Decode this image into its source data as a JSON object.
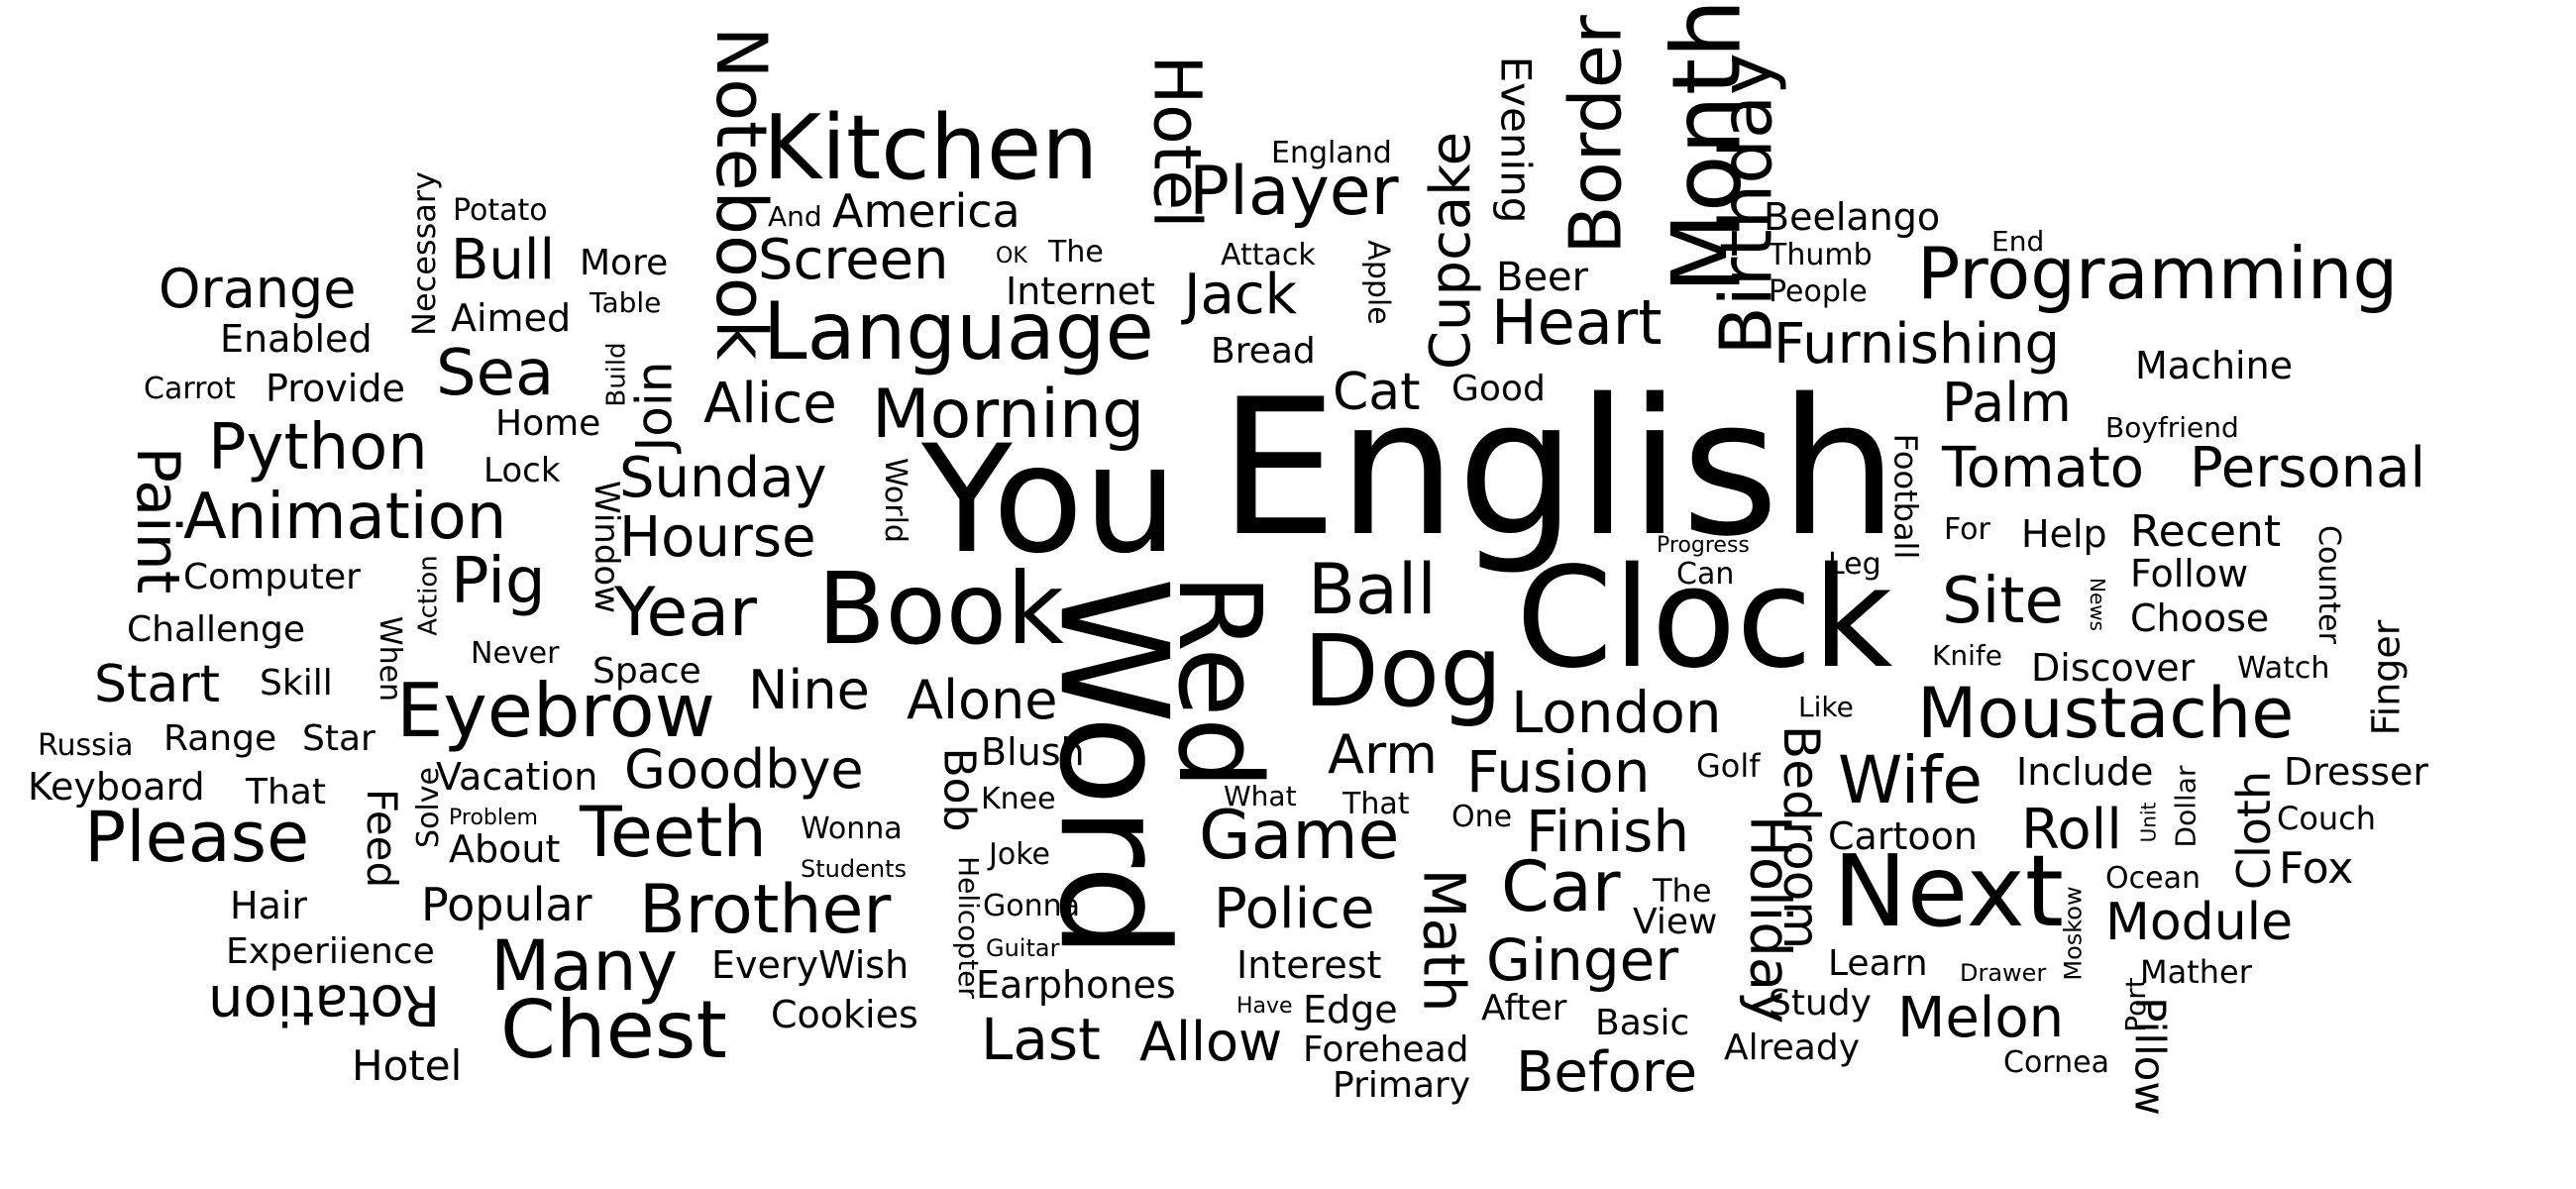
{
  "colors": {
    "background": "#ffffff",
    "text": "#000000"
  },
  "words": {
    "english": "English",
    "clock": "Clock",
    "you": "You",
    "word": "Word",
    "red": "Red",
    "book": "Book",
    "dog": "Dog",
    "next": "Next",
    "kitchen": "Kitchen",
    "language": "Language",
    "programming": "Programming",
    "chest": "Chest",
    "moustache": "Moustache",
    "eyebrow": "Eyebrow",
    "month": "Month",
    "birthday": "Birthday",
    "border": "Border",
    "notebook": "Notebook",
    "morning": "Morning",
    "player": "Player",
    "brother": "Brother",
    "please": "Please",
    "many": "Many",
    "ball": "Ball",
    "car": "Car",
    "game": "Game",
    "teeth": "Teeth",
    "year": "Year",
    "wife": "Wife",
    "site": "Site",
    "hotel_top": "Hotel",
    "animation": "Animation",
    "python": "Python",
    "sea": "Sea",
    "pig": "Pig",
    "hourse": "Hourse",
    "sunday": "Sunday",
    "furnishing": "Furnishing",
    "heart": "Heart",
    "police": "Police",
    "ginger": "Ginger",
    "goodbye": "Goodbye",
    "london": "London",
    "fusion": "Fusion",
    "finish": "Finish",
    "roll": "Roll",
    "melon": "Melon",
    "last": "Last",
    "allow": "Allow",
    "before": "Before",
    "rotation": "Rotation",
    "math": "Math",
    "holiday": "Holiday",
    "bedroom": "Bedroom",
    "cupcake": "Cupcake",
    "jack": "Jack",
    "tomato": "Tomato",
    "personal": "Personal",
    "palm": "Palm",
    "paint": "Paint",
    "screen": "Screen",
    "america": "America",
    "alice": "Alice",
    "alone": "Alone",
    "nine": "Nine",
    "bull": "Bull",
    "orange": "Orange",
    "start": "Start",
    "popular": "Popular",
    "module": "Module",
    "dresser": "Dresser",
    "cloth": "Cloth",
    "bob": "Bob",
    "pillow": "Pillow",
    "arm": "Arm",
    "cat": "Cat",
    "join": "Join",
    "recent": "Recent",
    "fox": "Fox",
    "evening": "Evening",
    "feed": "Feed",
    "cartoon": "Cartoon",
    "choose": "Choose",
    "follow": "Follow",
    "help": "Help",
    "include": "Include",
    "discover": "Discover",
    "finger": "Finger",
    "machine": "Machine",
    "beelango": "Beelango",
    "internet": "Internet",
    "blush": "Blush",
    "keyboard": "Keyboard",
    "vacation": "Vacation",
    "challenge": "Challenge",
    "computer": "Computer",
    "experiience": "Experiience",
    "hotel_bottom": "Hotel",
    "earphones": "Earphones",
    "edge": "Edge",
    "forehead": "Forehead",
    "primary": "Primary",
    "basic": "Basic",
    "already": "Already",
    "study": "Study",
    "learn": "Learn",
    "everywish": "EveryWish",
    "cookies": "Cookies",
    "hair": "Hair",
    "about": "About",
    "interest": "Interest",
    "after": "After",
    "bread": "Bread",
    "good": "Good",
    "more": "More",
    "aimed": "Aimed",
    "enabled": "Enabled",
    "provide": "Provide",
    "carrot": "Carrot",
    "home": "Home",
    "lock": "Lock",
    "window": "Window",
    "space": "Space",
    "skill": "Skill",
    "range": "Range",
    "star": "Star",
    "russia": "Russia",
    "that_left": "That",
    "when": "When",
    "solve": "Solve",
    "action": "Action",
    "never": "Never",
    "knee": "Knee",
    "joke": "Joke",
    "gonna": "Gonna",
    "guitar": "Guitar",
    "helicopter": "Helicopter",
    "wonna": "Wonna",
    "students": "Students",
    "problem": "Problem",
    "what": "What",
    "that_mid": "That",
    "one": "One",
    "golf": "Golf",
    "the_mid": "The",
    "view": "View",
    "like": "Like",
    "knife": "Knife",
    "watch": "Watch",
    "couch": "Couch",
    "ocean": "Ocean",
    "drawer": "Drawer",
    "mather": "Mather",
    "cornea": "Cornea",
    "moskow": "Moskow",
    "port": "Port",
    "unit": "Unit",
    "dollar": "Dollar",
    "counter": "Counter",
    "news": "News",
    "for": "For",
    "leg": "Leg",
    "progress": "Progress",
    "can": "Can",
    "football": "Football",
    "boyfriend": "Boyfriend",
    "people": "People",
    "thumb": "Thumb",
    "end": "End",
    "beer": "Beer",
    "attack": "Attack",
    "apple": "Apple",
    "england": "England",
    "the_top": "The",
    "ok": "OK",
    "and": "And",
    "potato": "Potato",
    "table": "Table",
    "build": "Build",
    "necessary": "Necessary",
    "world": "World",
    "have": "Have"
  }
}
